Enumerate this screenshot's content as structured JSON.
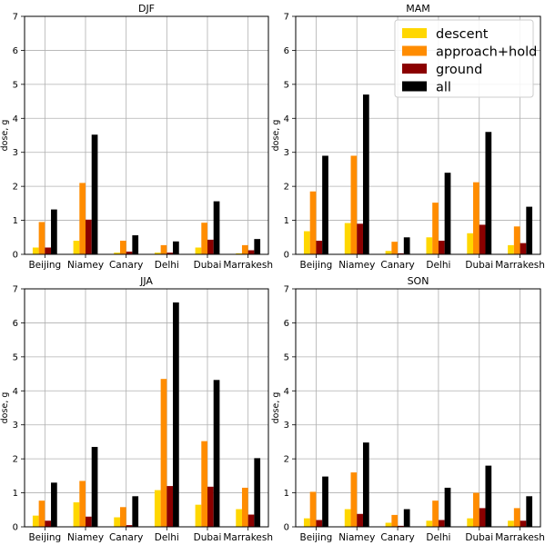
{
  "colors": {
    "descent": "#ffd700",
    "approach_hold": "#ff8c00",
    "ground": "#8b0000",
    "all": "#000000",
    "grid": "#b0b0b0",
    "axis": "#000000"
  },
  "legend": {
    "placement": "top-right (in MAM panel)",
    "entries": [
      "descent",
      "approach+hold",
      "ground",
      "all"
    ]
  },
  "chart_data": [
    {
      "type": "bar",
      "title": "DJF",
      "ylabel": "dose, g",
      "ylim": [
        0,
        7
      ],
      "yticks": [
        "0",
        "1",
        "2",
        "3",
        "4",
        "5",
        "6",
        "7"
      ],
      "grid": true,
      "categories": [
        "Beijing",
        "Niamey",
        "Canary",
        "Delhi",
        "Dubai",
        "Marrakesh"
      ],
      "series": [
        {
          "name": "descent",
          "values": [
            0.2,
            0.4,
            0.05,
            0.05,
            0.2,
            0.03
          ]
        },
        {
          "name": "approach+hold",
          "values": [
            0.95,
            2.1,
            0.4,
            0.27,
            0.93,
            0.27
          ]
        },
        {
          "name": "ground",
          "values": [
            0.2,
            1.02,
            0.08,
            0.05,
            0.43,
            0.12
          ]
        },
        {
          "name": "all",
          "values": [
            1.32,
            3.52,
            0.56,
            0.38,
            1.56,
            0.45
          ]
        }
      ]
    },
    {
      "type": "bar",
      "title": "MAM",
      "ylabel": "dose, g",
      "ylim": [
        0,
        7
      ],
      "yticks": [
        "0",
        "1",
        "2",
        "3",
        "4",
        "5",
        "6",
        "7"
      ],
      "grid": true,
      "categories": [
        "Beijing",
        "Niamey",
        "Canary",
        "Delhi",
        "Dubai",
        "Marrakesh"
      ],
      "series": [
        {
          "name": "descent",
          "values": [
            0.68,
            0.92,
            0.1,
            0.5,
            0.62,
            0.27
          ]
        },
        {
          "name": "approach+hold",
          "values": [
            1.85,
            2.9,
            0.37,
            1.52,
            2.12,
            0.82
          ]
        },
        {
          "name": "ground",
          "values": [
            0.4,
            0.9,
            0.03,
            0.4,
            0.87,
            0.33
          ]
        },
        {
          "name": "all",
          "values": [
            2.9,
            4.7,
            0.5,
            2.4,
            3.6,
            1.4
          ]
        }
      ]
    },
    {
      "type": "bar",
      "title": "JJA",
      "ylabel": "dose, g",
      "ylim": [
        0,
        7
      ],
      "yticks": [
        "0",
        "1",
        "2",
        "3",
        "4",
        "5",
        "6",
        "7"
      ],
      "grid": true,
      "categories": [
        "Beijing",
        "Niamey",
        "Canary",
        "Delhi",
        "Dubai",
        "Marrakesh"
      ],
      "series": [
        {
          "name": "descent",
          "values": [
            0.33,
            0.72,
            0.28,
            1.08,
            0.65,
            0.52
          ]
        },
        {
          "name": "approach+hold",
          "values": [
            0.77,
            1.35,
            0.58,
            4.35,
            2.52,
            1.15
          ]
        },
        {
          "name": "ground",
          "values": [
            0.18,
            0.3,
            0.05,
            1.2,
            1.18,
            0.36
          ]
        },
        {
          "name": "all",
          "values": [
            1.3,
            2.35,
            0.9,
            6.6,
            4.32,
            2.02
          ]
        }
      ]
    },
    {
      "type": "bar",
      "title": "SON",
      "ylabel": "dose, g",
      "ylim": [
        0,
        7
      ],
      "yticks": [
        "0",
        "1",
        "2",
        "3",
        "4",
        "5",
        "6",
        "7"
      ],
      "grid": true,
      "categories": [
        "Beijing",
        "Niamey",
        "Canary",
        "Delhi",
        "Dubai",
        "Marrakesh"
      ],
      "series": [
        {
          "name": "descent",
          "values": [
            0.25,
            0.52,
            0.12,
            0.18,
            0.25,
            0.18
          ]
        },
        {
          "name": "approach+hold",
          "values": [
            1.03,
            1.6,
            0.35,
            0.77,
            1.0,
            0.55
          ]
        },
        {
          "name": "ground",
          "values": [
            0.2,
            0.38,
            0.03,
            0.2,
            0.55,
            0.18
          ]
        },
        {
          "name": "all",
          "values": [
            1.48,
            2.48,
            0.52,
            1.15,
            1.8,
            0.9
          ]
        }
      ]
    }
  ]
}
